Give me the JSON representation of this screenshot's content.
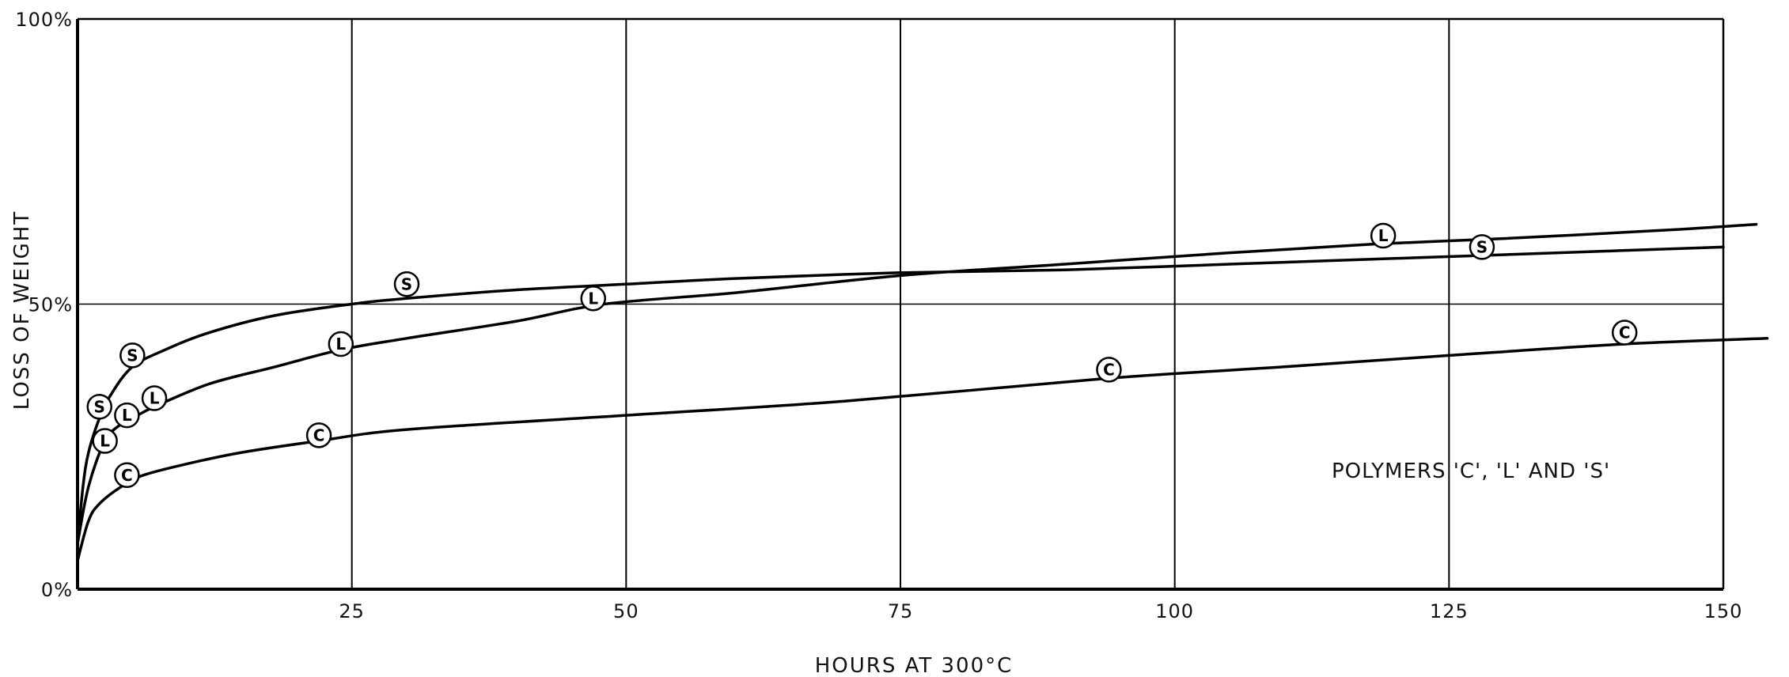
{
  "chart_data": {
    "type": "line",
    "title": "",
    "xlabel": "HOURS AT 300°C",
    "ylabel": "LOSS OF WEIGHT",
    "xlim": [
      0,
      150
    ],
    "ylim": [
      0,
      100
    ],
    "x_ticks": [
      {
        "value": 25,
        "label": "25"
      },
      {
        "value": 50,
        "label": "50"
      },
      {
        "value": 75,
        "label": "75"
      },
      {
        "value": 100,
        "label": "100"
      },
      {
        "value": 125,
        "label": "125"
      },
      {
        "value": 150,
        "label": "150"
      }
    ],
    "y_ticks": [
      {
        "value": 0,
        "label": "0%"
      },
      {
        "value": 50,
        "label": "50%"
      },
      {
        "value": 100,
        "label": "100%"
      }
    ],
    "grid": true,
    "annotation": "POLYMERS 'C', 'L' AND 'S'",
    "series": [
      {
        "name": "S",
        "marker_letter": "S",
        "color": "#000000",
        "curve": [
          [
            0,
            8
          ],
          [
            0.5,
            18
          ],
          [
            1,
            24
          ],
          [
            2,
            30
          ],
          [
            3,
            34
          ],
          [
            5,
            39
          ],
          [
            8,
            42
          ],
          [
            12,
            45
          ],
          [
            18,
            48
          ],
          [
            25,
            50
          ],
          [
            30,
            51
          ],
          [
            40,
            52.5
          ],
          [
            50,
            53.5
          ],
          [
            60,
            54.5
          ],
          [
            75,
            55.5
          ],
          [
            90,
            56
          ],
          [
            105,
            57
          ],
          [
            120,
            58
          ],
          [
            135,
            59
          ],
          [
            150,
            60
          ]
        ],
        "markers": [
          [
            2,
            32
          ],
          [
            5,
            41
          ],
          [
            30,
            53.5
          ],
          [
            128,
            60
          ]
        ]
      },
      {
        "name": "L",
        "marker_letter": "L",
        "color": "#000000",
        "curve": [
          [
            0,
            8
          ],
          [
            1,
            18
          ],
          [
            2.5,
            26
          ],
          [
            4,
            29
          ],
          [
            5,
            30
          ],
          [
            7,
            32
          ],
          [
            12,
            36
          ],
          [
            18,
            39
          ],
          [
            24,
            42
          ],
          [
            30,
            44
          ],
          [
            40,
            47
          ],
          [
            48,
            50
          ],
          [
            60,
            52
          ],
          [
            75,
            55
          ],
          [
            90,
            57
          ],
          [
            105,
            59
          ],
          [
            118,
            60.5
          ],
          [
            130,
            61.5
          ],
          [
            145,
            63
          ],
          [
            153,
            64
          ]
        ],
        "markers": [
          [
            2.5,
            26
          ],
          [
            4.5,
            30.5
          ],
          [
            7,
            33.5
          ],
          [
            24,
            43
          ],
          [
            47,
            51
          ],
          [
            119,
            62
          ]
        ]
      },
      {
        "name": "C",
        "marker_letter": "C",
        "color": "#000000",
        "curve": [
          [
            0,
            5
          ],
          [
            1,
            12
          ],
          [
            2,
            15
          ],
          [
            4,
            18
          ],
          [
            6,
            20
          ],
          [
            10,
            22
          ],
          [
            15,
            24
          ],
          [
            22,
            26
          ],
          [
            30,
            28
          ],
          [
            50,
            30.5
          ],
          [
            70,
            33
          ],
          [
            94,
            37
          ],
          [
            110,
            39
          ],
          [
            125,
            41
          ],
          [
            141,
            43
          ],
          [
            154,
            44
          ]
        ],
        "markers": [
          [
            4.5,
            20
          ],
          [
            22,
            27
          ],
          [
            94,
            38.5
          ],
          [
            141,
            45
          ]
        ]
      }
    ]
  }
}
